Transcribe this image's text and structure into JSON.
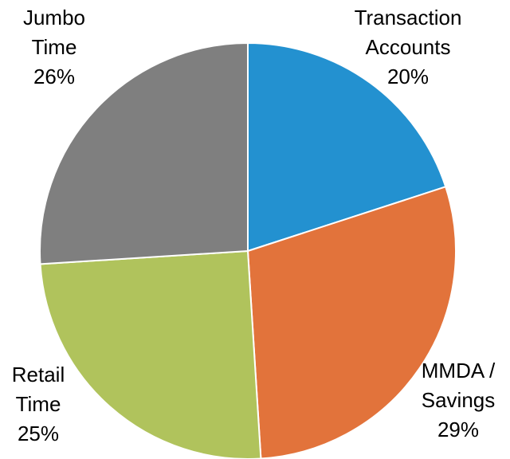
{
  "chart_data": {
    "type": "pie",
    "categories": [
      "Transaction Accounts",
      "MMDA / Savings",
      "Retail Time",
      "Jumbo Time"
    ],
    "values": [
      20,
      29,
      25,
      26
    ],
    "value_labels": [
      "20%",
      "29%",
      "25%",
      "26%"
    ],
    "colors": [
      "#2391d0",
      "#e2733b",
      "#b0c35c",
      "#7f7f7f"
    ]
  }
}
